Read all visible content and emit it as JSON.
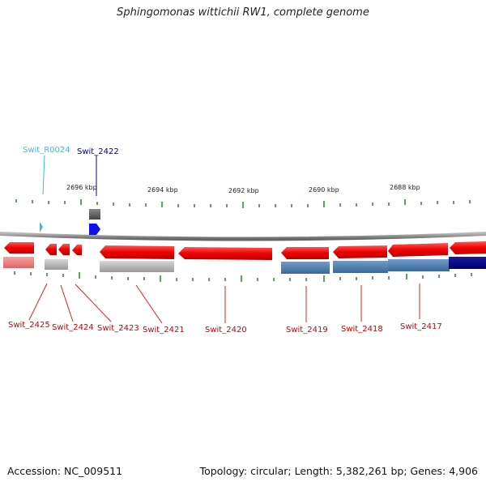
{
  "title": "Sphingomonas wittichii RW1, complete genome",
  "footer": {
    "accession": "Accession: NC_009511",
    "stats": "Topology: circular; Length: 5,382,261 bp; Genes: 4,906"
  },
  "colors": {
    "forward_cds": "#ee1111",
    "reverse_cds": "#dd1111",
    "label_reverse": "#cc0000",
    "label_forward": "#000099",
    "label_rna": "#33bbee",
    "rna": "#33bbee",
    "forward_gene_blue": "#1111dd",
    "tick": "#228822",
    "backbone": "#888888",
    "feature_grey": "#aaaaaa",
    "feature_steel": "#4a78a8",
    "feature_navy": "#000088",
    "feature_pink": "#ee8888"
  },
  "ruler": {
    "ticks": [
      {
        "label": "2696 kbp"
      },
      {
        "label": "2694 kbp"
      },
      {
        "label": "2692 kbp"
      },
      {
        "label": "2690 kbp"
      },
      {
        "label": "2688 kbp"
      }
    ]
  },
  "labels": {
    "swit_r0024": "Swit_R0024",
    "swit_2422": "Swit_2422",
    "swit_2425": "Swit_2425",
    "swit_2424": "Swit_2424",
    "swit_2423": "Swit_2423",
    "swit_2421": "Swit_2421",
    "swit_2420": "Swit_2420",
    "swit_2419": "Swit_2419",
    "swit_2418": "Swit_2418",
    "swit_2417": "Swit_2417"
  }
}
